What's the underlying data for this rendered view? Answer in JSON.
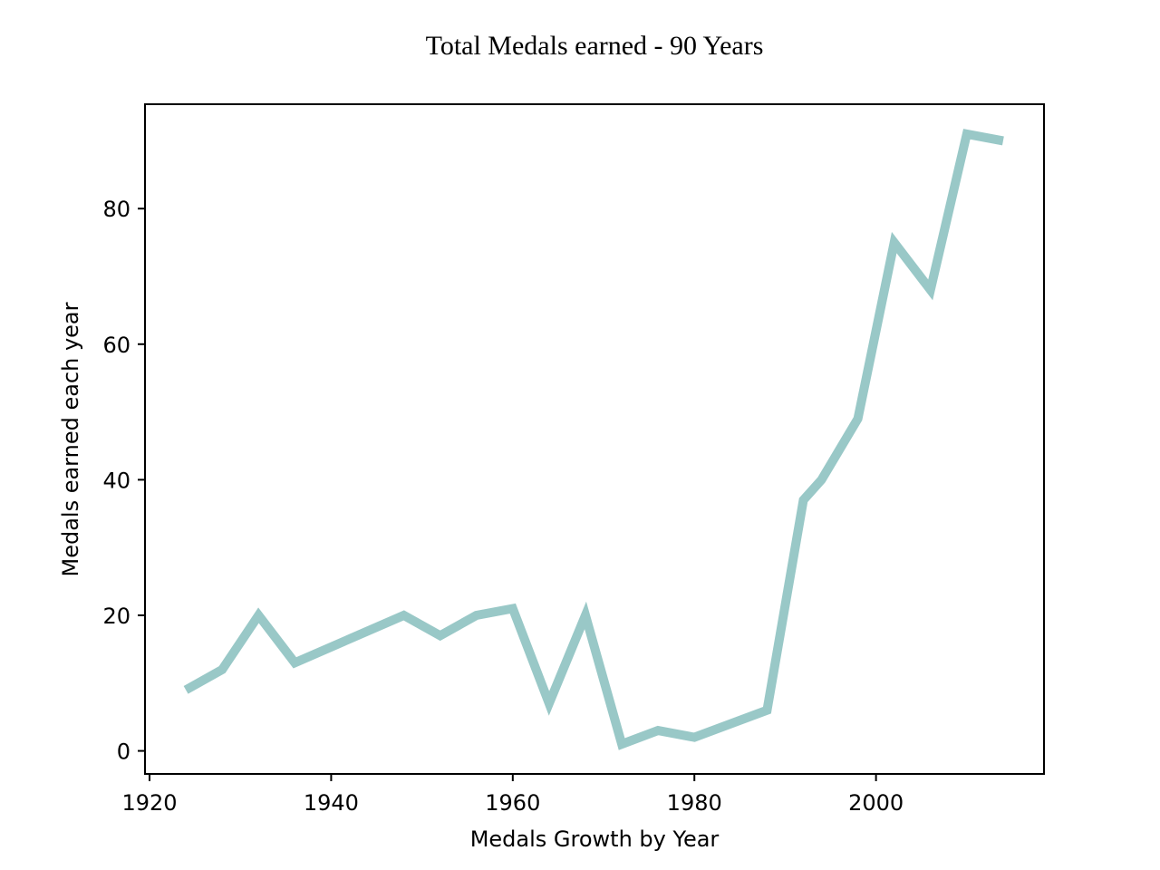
{
  "chart_data": {
    "type": "line",
    "title": "Total Medals earned - 90 Years",
    "xlabel": "Medals Growth by Year",
    "ylabel": "Medals earned each year",
    "xlim": [
      1919.5,
      2018.5
    ],
    "ylim": [
      -3.4,
      95.4
    ],
    "x_ticks": [
      1920,
      1940,
      1960,
      1980,
      2000
    ],
    "y_ticks": [
      0,
      20,
      40,
      60,
      80
    ],
    "grid": false,
    "line_color": "#99c8c7",
    "series": [
      {
        "x": [
          1924,
          1928,
          1932,
          1936,
          1948,
          1952,
          1956,
          1960,
          1964,
          1968,
          1972,
          1976,
          1980,
          1988,
          1992,
          1994,
          1998,
          2002,
          2006,
          2010,
          2014
        ],
        "values": [
          9,
          12,
          20,
          13,
          20,
          17,
          20,
          21,
          7,
          20,
          1,
          3,
          2,
          6,
          37,
          40,
          49,
          75,
          68,
          91,
          90
        ]
      }
    ]
  }
}
